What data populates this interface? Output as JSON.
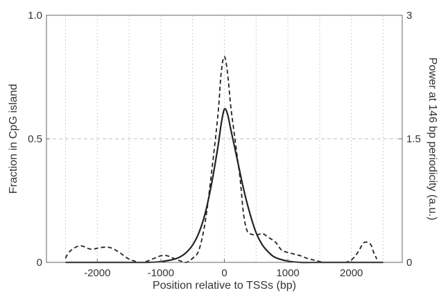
{
  "chart_data": {
    "type": "line",
    "title": "",
    "xlabel": "Position relative to TSSs (bp)",
    "ylabel_left": "Fraction in CpG island",
    "ylabel_right": "Power at 146 bp periodicity (a.u.)",
    "xlim": [
      -2800,
      2800
    ],
    "ylim_left": [
      0,
      1.0
    ],
    "ylim_right": [
      0,
      3
    ],
    "x_ticks": [
      -2000,
      -1000,
      0,
      1000,
      2000
    ],
    "x_tick_labels": [
      "-2000",
      "-1000",
      "0",
      "1000",
      "2000"
    ],
    "y_left_ticks": [
      0,
      0.5,
      1.0
    ],
    "y_left_tick_labels": [
      "0",
      "0.5",
      "1.0"
    ],
    "y_right_ticks": [
      0,
      1.5,
      3
    ],
    "y_right_tick_labels": [
      "0",
      "1.5",
      "3"
    ],
    "grid_x": [
      -2500,
      -2000,
      -1500,
      -1000,
      -500,
      0,
      500,
      1000,
      1500,
      2000,
      2500
    ],
    "grid_y_left": [
      0.5
    ],
    "legend": false,
    "series": [
      {
        "axis": "left",
        "style": "solid",
        "color": "#222222",
        "x": [
          -2500,
          -2000,
          -1600,
          -1200,
          -1000,
          -800,
          -700,
          -600,
          -500,
          -400,
          -300,
          -200,
          -100,
          -50,
          0,
          50,
          100,
          200,
          300,
          400,
          500,
          600,
          700,
          800,
          1000,
          1200,
          1500,
          2000,
          2500
        ],
        "y": [
          0.0,
          0.0,
          0.0,
          0.0,
          0.003,
          0.012,
          0.022,
          0.04,
          0.07,
          0.12,
          0.2,
          0.32,
          0.47,
          0.56,
          0.62,
          0.6,
          0.54,
          0.42,
          0.3,
          0.2,
          0.12,
          0.07,
          0.04,
          0.02,
          0.005,
          0.0,
          0.0,
          0.0,
          0.0
        ]
      },
      {
        "axis": "right",
        "style": "dashed",
        "color": "#222222",
        "x": [
          -2500,
          -2450,
          -2350,
          -2250,
          -2100,
          -1950,
          -1800,
          -1650,
          -1500,
          -1300,
          -1100,
          -1000,
          -900,
          -800,
          -700,
          -600,
          -500,
          -400,
          -300,
          -200,
          -100,
          -50,
          0,
          50,
          100,
          150,
          200,
          250,
          300,
          350,
          400,
          500,
          600,
          700,
          800,
          900,
          1000,
          1100,
          1200,
          1300,
          1400,
          1500,
          1600,
          1800,
          1900,
          2000,
          2100,
          2200,
          2300,
          2350,
          2400
        ],
        "y": [
          0.05,
          0.12,
          0.18,
          0.2,
          0.16,
          0.18,
          0.18,
          0.12,
          0.04,
          0.0,
          0.05,
          0.08,
          0.08,
          0.05,
          0.02,
          0.0,
          0.05,
          0.15,
          0.5,
          1.1,
          1.8,
          2.3,
          2.5,
          2.3,
          1.9,
          1.6,
          1.3,
          1.0,
          0.6,
          0.4,
          0.35,
          0.33,
          0.35,
          0.3,
          0.25,
          0.15,
          0.12,
          0.1,
          0.08,
          0.05,
          0.03,
          0.01,
          0.0,
          0.0,
          0.0,
          0.03,
          0.12,
          0.24,
          0.22,
          0.12,
          0.04
        ]
      }
    ]
  }
}
